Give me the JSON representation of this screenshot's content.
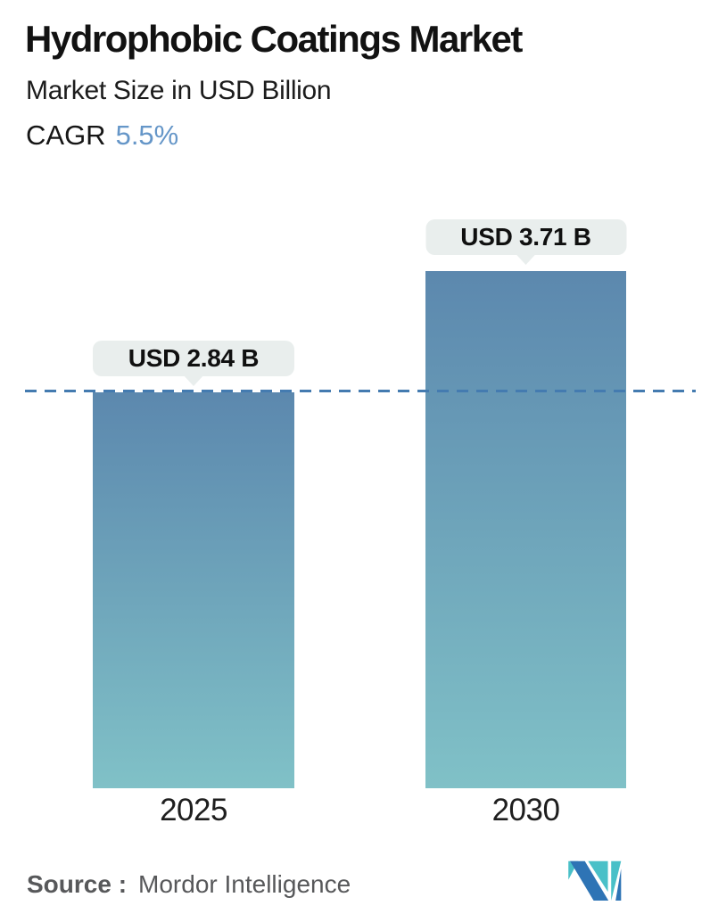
{
  "header": {
    "title": "Hydrophobic Coatings Market",
    "subtitle": "Market Size in USD Billion",
    "cagr_label": "CAGR",
    "cagr_value": "5.5%"
  },
  "chart_data": {
    "type": "bar",
    "title": "Hydrophobic Coatings Market",
    "subtitle": "Market Size in USD Billion",
    "cagr_percent": 5.5,
    "unit": "USD Billion",
    "categories": [
      "2025",
      "2030"
    ],
    "values": [
      2.84,
      3.71
    ],
    "value_labels": [
      "USD 2.84 B",
      "USD 3.71 B"
    ],
    "reference_line_value": 2.84,
    "reference_line_style": "dashed",
    "ylim": [
      0,
      4.2
    ],
    "grid": false,
    "legend": "none",
    "axes_visible": false,
    "bar_gradient_top": "#5c88ae",
    "bar_gradient_bottom": "#80c1c7"
  },
  "footer": {
    "source_label": "Source :",
    "source_value": "Mordor Intelligence",
    "logo_icon": "mordor-intelligence-m-monogram"
  },
  "colors": {
    "accent_blue": "#6596c8",
    "dashed_line": "#447bb0",
    "bar_top": "#5c88ae",
    "bar_bottom": "#80c1c7",
    "callout_bg": "#e9eeed",
    "source_text": "#57585a",
    "logo_blue": "#2e74b5",
    "logo_teal": "#49c0c8"
  }
}
